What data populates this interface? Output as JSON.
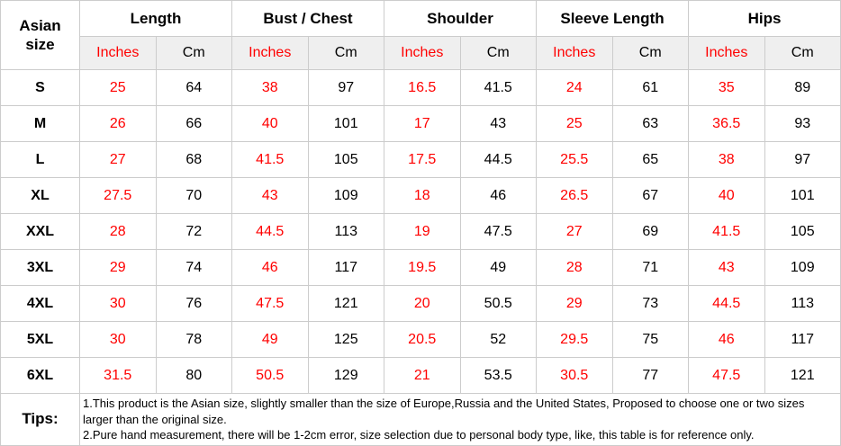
{
  "table": {
    "corner_header": "Asian size",
    "groups": [
      {
        "label": "Length"
      },
      {
        "label": "Bust / Chest"
      },
      {
        "label": "Shoulder"
      },
      {
        "label": "Sleeve Length"
      },
      {
        "label": "Hips"
      }
    ],
    "unit_headers": {
      "inches": "Inches",
      "cm": "Cm"
    },
    "rows": [
      {
        "size": "S",
        "values": [
          "25",
          "64",
          "38",
          "97",
          "16.5",
          "41.5",
          "24",
          "61",
          "35",
          "89"
        ]
      },
      {
        "size": "M",
        "values": [
          "26",
          "66",
          "40",
          "101",
          "17",
          "43",
          "25",
          "63",
          "36.5",
          "93"
        ]
      },
      {
        "size": "L",
        "values": [
          "27",
          "68",
          "41.5",
          "105",
          "17.5",
          "44.5",
          "25.5",
          "65",
          "38",
          "97"
        ]
      },
      {
        "size": "XL",
        "values": [
          "27.5",
          "70",
          "43",
          "109",
          "18",
          "46",
          "26.5",
          "67",
          "40",
          "101"
        ]
      },
      {
        "size": "XXL",
        "values": [
          "28",
          "72",
          "44.5",
          "113",
          "19",
          "47.5",
          "27",
          "69",
          "41.5",
          "105"
        ]
      },
      {
        "size": "3XL",
        "values": [
          "29",
          "74",
          "46",
          "117",
          "19.5",
          "49",
          "28",
          "71",
          "43",
          "109"
        ]
      },
      {
        "size": "4XL",
        "values": [
          "30",
          "76",
          "47.5",
          "121",
          "20",
          "50.5",
          "29",
          "73",
          "44.5",
          "113"
        ]
      },
      {
        "size": "5XL",
        "values": [
          "30",
          "78",
          "49",
          "125",
          "20.5",
          "52",
          "29.5",
          "75",
          "46",
          "117"
        ]
      },
      {
        "size": "6XL",
        "values": [
          "31.5",
          "80",
          "50.5",
          "129",
          "21",
          "53.5",
          "30.5",
          "77",
          "47.5",
          "121"
        ]
      }
    ],
    "tips": {
      "label": "Tips:",
      "line1": "1.This product is the Asian size, slightly smaller than the size of Europe,Russia and the United States, Proposed to choose one or two sizes larger than the original size.",
      "line2": "2.Pure hand measurement, there will be 1-2cm error, size selection due to personal body type, like, this table is for reference only."
    },
    "colors": {
      "accent_red": "#ff0000",
      "header_bg": "#efefef",
      "border": "#cccccc"
    }
  }
}
